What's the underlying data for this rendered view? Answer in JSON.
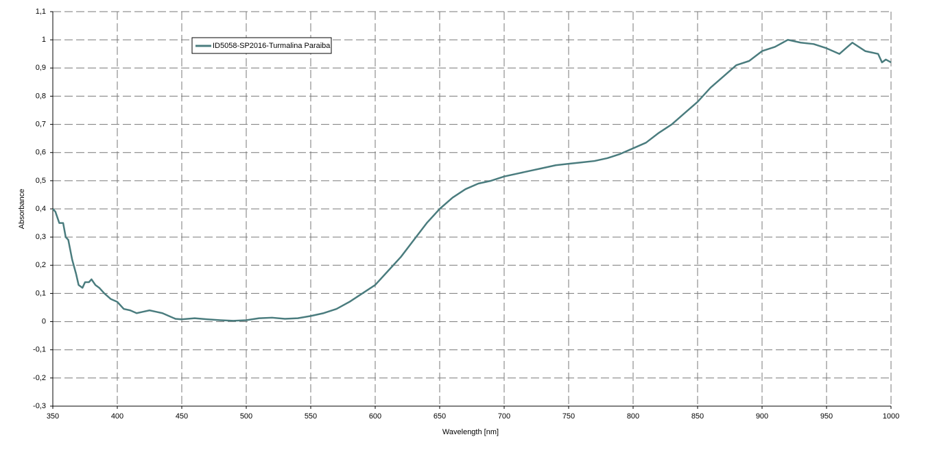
{
  "chart_data": {
    "type": "line",
    "x_label": "Wavelength [nm]",
    "y_label": "Absorbance",
    "xlim": [
      350,
      1000
    ],
    "xticks": [
      350,
      400,
      450,
      500,
      550,
      600,
      650,
      700,
      750,
      800,
      850,
      900,
      950,
      1000
    ],
    "ylim": [
      -0.3,
      1.1
    ],
    "yticks": [
      {
        "value": -0.3,
        "label": "-0,3"
      },
      {
        "value": -0.2,
        "label": "-0,2"
      },
      {
        "value": -0.1,
        "label": "-0,1"
      },
      0,
      {
        "value": 0.1,
        "label": "0,1"
      },
      {
        "value": 0.2,
        "label": "0,2"
      },
      {
        "value": 0.3,
        "label": "0,3"
      },
      {
        "value": 0.4,
        "label": "0,4"
      },
      {
        "value": 0.5,
        "label": "0,5"
      },
      {
        "value": 0.6,
        "label": "0,6"
      },
      {
        "value": 0.7,
        "label": "0,7"
      },
      {
        "value": 0.8,
        "label": "0,8"
      },
      {
        "value": 0.9,
        "label": "0,9"
      },
      1,
      {
        "value": 1.1,
        "label": "1,1"
      }
    ],
    "grid": true,
    "x": [
      350,
      352,
      355,
      358,
      360,
      362,
      365,
      368,
      370,
      373,
      375,
      378,
      380,
      383,
      386,
      390,
      395,
      400,
      405,
      410,
      415,
      420,
      425,
      430,
      435,
      440,
      445,
      450,
      460,
      470,
      480,
      490,
      500,
      510,
      520,
      530,
      540,
      550,
      560,
      570,
      580,
      590,
      600,
      610,
      620,
      630,
      640,
      650,
      660,
      670,
      680,
      690,
      700,
      710,
      720,
      730,
      740,
      750,
      760,
      770,
      780,
      790,
      800,
      810,
      820,
      830,
      840,
      850,
      860,
      870,
      880,
      890,
      900,
      910,
      920,
      930,
      940,
      950,
      960,
      965,
      970,
      975,
      980,
      985,
      990,
      993,
      996,
      1000
    ],
    "series": [
      {
        "name": "ID5058-SP2016-Turmalina Paraiba",
        "color": "#4a7c7e",
        "values": [
          0.4,
          0.39,
          0.35,
          0.35,
          0.3,
          0.29,
          0.22,
          0.17,
          0.13,
          0.12,
          0.14,
          0.14,
          0.15,
          0.13,
          0.12,
          0.1,
          0.08,
          0.07,
          0.045,
          0.04,
          0.03,
          0.035,
          0.04,
          0.035,
          0.03,
          0.02,
          0.01,
          0.008,
          0.012,
          0.008,
          0.005,
          0.003,
          0.005,
          0.012,
          0.014,
          0.01,
          0.012,
          0.02,
          0.03,
          0.045,
          0.07,
          0.1,
          0.13,
          0.18,
          0.23,
          0.29,
          0.35,
          0.4,
          0.44,
          0.47,
          0.49,
          0.5,
          0.515,
          0.525,
          0.535,
          0.545,
          0.555,
          0.56,
          0.565,
          0.57,
          0.58,
          0.595,
          0.615,
          0.635,
          0.67,
          0.7,
          0.74,
          0.78,
          0.83,
          0.87,
          0.91,
          0.925,
          0.96,
          0.975,
          1.0,
          0.99,
          0.985,
          0.97,
          0.95,
          0.97,
          0.99,
          0.975,
          0.96,
          0.955,
          0.95,
          0.92,
          0.93,
          0.92
        ]
      }
    ]
  }
}
